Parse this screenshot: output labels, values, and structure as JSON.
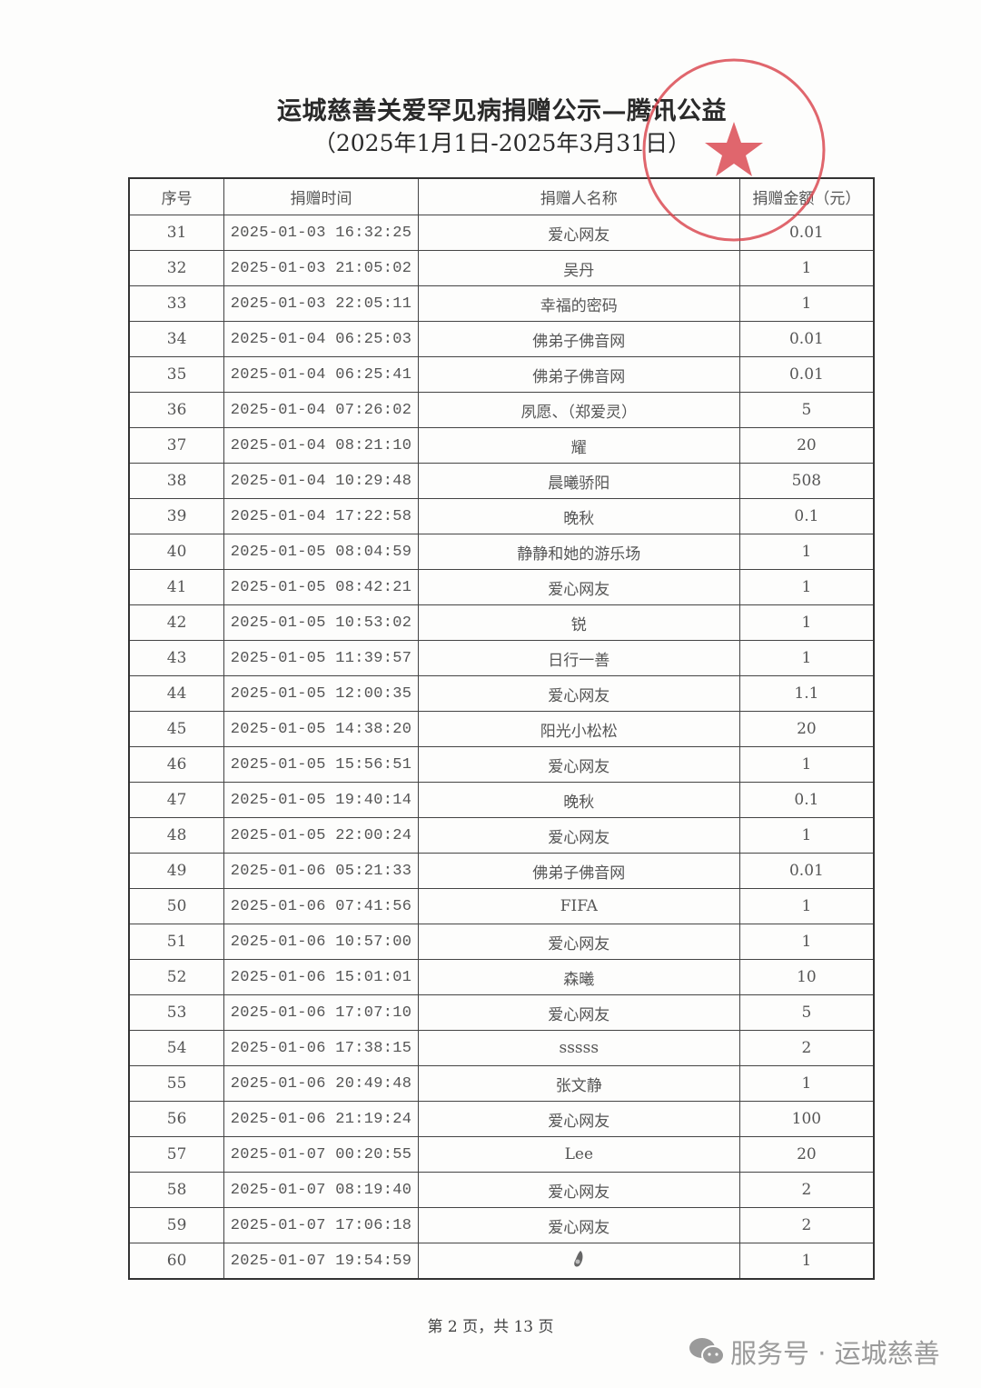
{
  "document": {
    "title": "运城慈善关爱罕见病捐赠公示—腾讯公益",
    "subtitle": "（2025年1月1日-2025年3月31日）",
    "stamp_color": "#d9414a"
  },
  "table": {
    "headers": [
      "序号",
      "捐赠时间",
      "捐赠人名称",
      "捐赠金额（元）"
    ],
    "rows": [
      {
        "no": "31",
        "time": "2025-01-03 16:32:25",
        "name": "爱心网友",
        "amount": "0.01"
      },
      {
        "no": "32",
        "time": "2025-01-03 21:05:02",
        "name": "吴丹",
        "amount": "1"
      },
      {
        "no": "33",
        "time": "2025-01-03 22:05:11",
        "name": "幸福的密码",
        "amount": "1"
      },
      {
        "no": "34",
        "time": "2025-01-04 06:25:03",
        "name": "佛弟子佛音网",
        "amount": "0.01"
      },
      {
        "no": "35",
        "time": "2025-01-04 06:25:41",
        "name": "佛弟子佛音网",
        "amount": "0.01"
      },
      {
        "no": "36",
        "time": "2025-01-04 07:26:02",
        "name": "夙愿、（郑爱灵）",
        "amount": "5"
      },
      {
        "no": "37",
        "time": "2025-01-04 08:21:10",
        "name": "耀",
        "amount": "20"
      },
      {
        "no": "38",
        "time": "2025-01-04 10:29:48",
        "name": "晨曦骄阳",
        "amount": "508"
      },
      {
        "no": "39",
        "time": "2025-01-04 17:22:58",
        "name": "晚秋",
        "amount": "0.1"
      },
      {
        "no": "40",
        "time": "2025-01-05 08:04:59",
        "name": "静静和她的游乐场",
        "amount": "1"
      },
      {
        "no": "41",
        "time": "2025-01-05 08:42:21",
        "name": "爱心网友",
        "amount": "1"
      },
      {
        "no": "42",
        "time": "2025-01-05 10:53:02",
        "name": "锐",
        "amount": "1"
      },
      {
        "no": "43",
        "time": "2025-01-05 11:39:57",
        "name": "日行一善",
        "amount": "1"
      },
      {
        "no": "44",
        "time": "2025-01-05 12:00:35",
        "name": "爱心网友",
        "amount": "1.1"
      },
      {
        "no": "45",
        "time": "2025-01-05 14:38:20",
        "name": "阳光小松松",
        "amount": "20"
      },
      {
        "no": "46",
        "time": "2025-01-05 15:56:51",
        "name": "爱心网友",
        "amount": "1"
      },
      {
        "no": "47",
        "time": "2025-01-05 19:40:14",
        "name": "晚秋",
        "amount": "0.1"
      },
      {
        "no": "48",
        "time": "2025-01-05 22:00:24",
        "name": "爱心网友",
        "amount": "1"
      },
      {
        "no": "49",
        "time": "2025-01-06 05:21:33",
        "name": "佛弟子佛音网",
        "amount": "0.01"
      },
      {
        "no": "50",
        "time": "2025-01-06 07:41:56",
        "name": "FIFA",
        "amount": "1"
      },
      {
        "no": "51",
        "time": "2025-01-06 10:57:00",
        "name": "爱心网友",
        "amount": "1"
      },
      {
        "no": "52",
        "time": "2025-01-06 15:01:01",
        "name": "森曦",
        "amount": "10"
      },
      {
        "no": "53",
        "time": "2025-01-06 17:07:10",
        "name": "爱心网友",
        "amount": "5"
      },
      {
        "no": "54",
        "time": "2025-01-06 17:38:15",
        "name": "sssss",
        "amount": "2"
      },
      {
        "no": "55",
        "time": "2025-01-06 20:49:48",
        "name": "张文静",
        "amount": "1"
      },
      {
        "no": "56",
        "time": "2025-01-06 21:19:24",
        "name": "爱心网友",
        "amount": "100"
      },
      {
        "no": "57",
        "time": "2025-01-07 00:20:55",
        "name": "Lee",
        "amount": "20"
      },
      {
        "no": "58",
        "time": "2025-01-07 08:19:40",
        "name": "爱心网友",
        "amount": "2"
      },
      {
        "no": "59",
        "time": "2025-01-07 17:06:18",
        "name": "爱心网友",
        "amount": "2"
      },
      {
        "no": "60",
        "time": "2025-01-07 19:54:59",
        "name": "",
        "name_icon": "avocado-emoji-icon",
        "amount": "1"
      }
    ]
  },
  "footer": {
    "page_label": "第 2 页，共 13 页"
  },
  "watermark": {
    "text": "服务号 · 运城慈善",
    "icon": "wechat-icon"
  }
}
